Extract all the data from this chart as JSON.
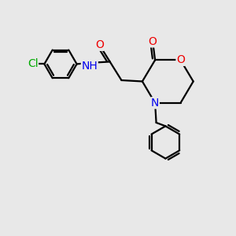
{
  "bg_color": "#e8e8e8",
  "atom_colors": {
    "C": "#000000",
    "N": "#0000ee",
    "O": "#ee0000",
    "Cl": "#00aa00",
    "H": "#000000"
  },
  "bond_color": "#000000",
  "bond_width": 1.6,
  "font_size": 10
}
